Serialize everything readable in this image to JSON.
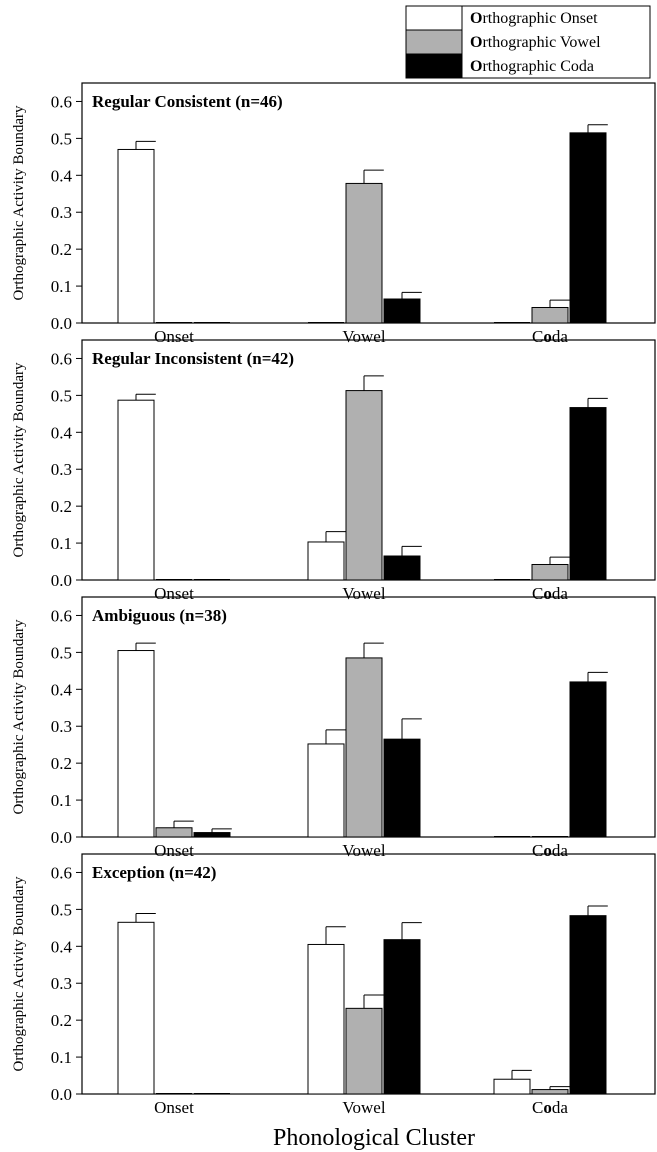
{
  "figure": {
    "xlabel": "Phonological Cluster",
    "ylabel": "Orthographic Activity Boundary"
  },
  "legend": {
    "placement": "top-right",
    "entries": [
      {
        "initial": "O",
        "rest": "rthographic Onset",
        "color": "#ffffff"
      },
      {
        "initial": "O",
        "rest": "rthographic Vowel",
        "color": "#b0b0b0"
      },
      {
        "initial": "O",
        "rest": "rthographic Coda",
        "color": "#000000"
      }
    ]
  },
  "chart_data": [
    {
      "type": "bar",
      "title": "Regular Consistent (n=46)",
      "categories": [
        "Onset",
        "Vowel",
        "Coda"
      ],
      "category_labels": [
        [
          "",
          "Onset",
          ""
        ],
        [
          "",
          "Vowel",
          ""
        ],
        [
          "C",
          "o",
          "da"
        ]
      ],
      "series": [
        {
          "name": "Orthographic Onset",
          "values": [
            0.47,
            0.0,
            0.0
          ],
          "errors": [
            0.022,
            0,
            0
          ]
        },
        {
          "name": "Orthographic Vowel",
          "values": [
            0.0,
            0.378,
            0.042
          ],
          "errors": [
            0,
            0.036,
            0.02
          ]
        },
        {
          "name": "Orthographic Coda",
          "values": [
            0.0,
            0.065,
            0.515
          ],
          "errors": [
            0,
            0.018,
            0.022
          ]
        }
      ],
      "ylim": [
        0,
        0.65
      ],
      "yticks": [
        "0.0",
        "0.1",
        "0.2",
        "0.3",
        "0.4",
        "0.5",
        "0.6"
      ]
    },
    {
      "type": "bar",
      "title": "Regular Inconsistent (n=42)",
      "categories": [
        "Onset",
        "Vowel",
        "Coda"
      ],
      "category_labels": [
        [
          "",
          "Onset",
          ""
        ],
        [
          "",
          "Vowel",
          ""
        ],
        [
          "C",
          "o",
          "da"
        ]
      ],
      "series": [
        {
          "name": "Orthographic Onset",
          "values": [
            0.487,
            0.103,
            0.0
          ],
          "errors": [
            0.016,
            0.028,
            0
          ]
        },
        {
          "name": "Orthographic Vowel",
          "values": [
            0.0,
            0.513,
            0.042
          ],
          "errors": [
            0,
            0.04,
            0.02
          ]
        },
        {
          "name": "Orthographic Coda",
          "values": [
            0.0,
            0.065,
            0.467
          ],
          "errors": [
            0,
            0.026,
            0.025
          ]
        }
      ],
      "ylim": [
        0,
        0.65
      ],
      "yticks": [
        "0.0",
        "0.1",
        "0.2",
        "0.3",
        "0.4",
        "0.5",
        "0.6"
      ]
    },
    {
      "type": "bar",
      "title": "Ambiguous (n=38)",
      "categories": [
        "Onset",
        "Vowel",
        "Coda"
      ],
      "category_labels": [
        [
          "",
          "Onset",
          ""
        ],
        [
          "",
          "Vowel",
          ""
        ],
        [
          "C",
          "o",
          "da"
        ]
      ],
      "series": [
        {
          "name": "Orthographic Onset",
          "values": [
            0.505,
            0.252,
            0.0
          ],
          "errors": [
            0.02,
            0.038,
            0
          ]
        },
        {
          "name": "Orthographic Vowel",
          "values": [
            0.025,
            0.485,
            0.0
          ],
          "errors": [
            0.018,
            0.04,
            0
          ]
        },
        {
          "name": "Orthographic Coda",
          "values": [
            0.012,
            0.265,
            0.42
          ],
          "errors": [
            0.01,
            0.055,
            0.026
          ]
        }
      ],
      "ylim": [
        0,
        0.65
      ],
      "yticks": [
        "0.0",
        "0.1",
        "0.2",
        "0.3",
        "0.4",
        "0.5",
        "0.6"
      ]
    },
    {
      "type": "bar",
      "title": "Exception (n=42)",
      "categories": [
        "Onset",
        "Vowel",
        "Coda"
      ],
      "category_labels": [
        [
          "",
          "Onset",
          ""
        ],
        [
          "",
          "Vowel",
          ""
        ],
        [
          "C",
          "o",
          "da"
        ]
      ],
      "series": [
        {
          "name": "Orthographic Onset",
          "values": [
            0.465,
            0.405,
            0.04
          ],
          "errors": [
            0.024,
            0.048,
            0.024
          ]
        },
        {
          "name": "Orthographic Vowel",
          "values": [
            0.0,
            0.232,
            0.012
          ],
          "errors": [
            0,
            0.036,
            0.008
          ]
        },
        {
          "name": "Orthographic Coda",
          "values": [
            0.0,
            0.418,
            0.483
          ],
          "errors": [
            0,
            0.046,
            0.026
          ]
        }
      ],
      "ylim": [
        0,
        0.65
      ],
      "yticks": [
        "0.0",
        "0.1",
        "0.2",
        "0.3",
        "0.4",
        "0.5",
        "0.6"
      ]
    }
  ]
}
